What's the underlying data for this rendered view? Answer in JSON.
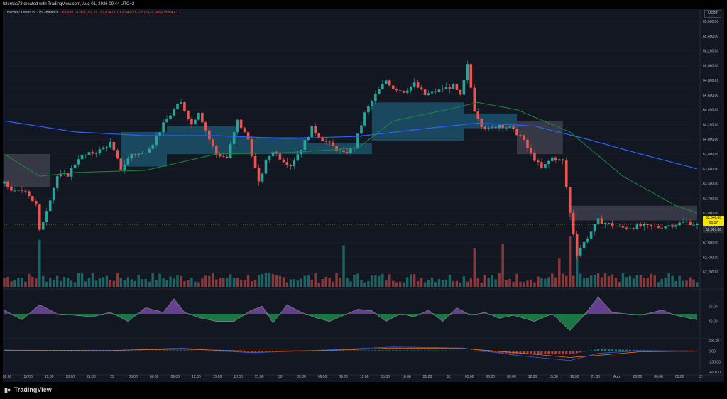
{
  "header": {
    "credit": "telemac73 created with TradingView.com, Aug 01, 2026 09:44 UTC+2"
  },
  "legend": {
    "symbol": "Bitcoin / TetherUS · 15 · Binance",
    "ohlc": "O63,069.74 H63,069.75 L63,034.00 C63,046.00 −23.75 (−0.04%) Vol54.41"
  },
  "currency": "USDT",
  "price_labels": {
    "current": "63,046.00",
    "countdown": "00:57",
    "secondary": "62,887.86"
  },
  "footer": {
    "brand": "TradingView"
  },
  "colors": {
    "background": "#131722",
    "up": "#26a69a",
    "down": "#ef5350",
    "ma_blue": "#2962ff",
    "ma_green": "#1b8a3a",
    "cloud_grey": "#434651",
    "cloud_teal": "#1c5a74",
    "osc_purple": "#9c5bd8",
    "osc_green": "#21c55d"
  },
  "chart_data": {
    "type": "line",
    "price_axis": {
      "ylim": [
        62200,
        65800
      ],
      "tick_labels": [
        "65,600.00",
        "65,400.00",
        "65,200.00",
        "65,000.00",
        "64,800.00",
        "64,600.00",
        "64,400.00",
        "64,200.00",
        "64,000.00",
        "63,800.00",
        "63,600.00",
        "63,400.00",
        "63,200.00",
        "63,000.00",
        "62,800.00",
        "62,600.00",
        "62,400.00",
        "62,200.00"
      ]
    },
    "time_axis": {
      "tick_labels": [
        "09:00",
        "12:00",
        "15:00",
        "18:00",
        "21:00",
        "29",
        "03:00",
        "06:00",
        "09:00",
        "12:00",
        "15:00",
        "18:00",
        "21:00",
        "30",
        "03:00",
        "06:00",
        "09:00",
        "12:00",
        "15:00",
        "18:00",
        "21:00",
        "31",
        "03:00",
        "06:00",
        "09:00",
        "12:00",
        "15:00",
        "18:00",
        "21:00",
        "Aug",
        "03:00",
        "06:00",
        "09:00",
        "12:"
      ]
    },
    "price_series": {
      "name": "",
      "keypoints": [
        [
          0,
          63600
        ],
        [
          3,
          63480
        ],
        [
          6,
          63520
        ],
        [
          9,
          63300
        ],
        [
          10,
          62950
        ],
        [
          12,
          63250
        ],
        [
          15,
          63700
        ],
        [
          18,
          63720
        ],
        [
          21,
          63950
        ],
        [
          24,
          64000
        ],
        [
          27,
          64050
        ],
        [
          30,
          64150
        ],
        [
          33,
          63800
        ],
        [
          36,
          64000
        ],
        [
          39,
          64000
        ],
        [
          42,
          64150
        ],
        [
          45,
          64400
        ],
        [
          48,
          64600
        ],
        [
          50,
          64700
        ],
        [
          53,
          64400
        ],
        [
          55,
          64580
        ],
        [
          58,
          64200
        ],
        [
          60,
          64000
        ],
        [
          63,
          63950
        ],
        [
          66,
          64450
        ],
        [
          69,
          64200
        ],
        [
          72,
          63600
        ],
        [
          74,
          63900
        ],
        [
          76,
          64050
        ],
        [
          78,
          63950
        ],
        [
          81,
          63850
        ],
        [
          84,
          64080
        ],
        [
          87,
          64350
        ],
        [
          90,
          64200
        ],
        [
          93,
          64100
        ],
        [
          96,
          64000
        ],
        [
          99,
          64100
        ],
        [
          102,
          64550
        ],
        [
          105,
          64800
        ],
        [
          108,
          65000
        ],
        [
          110,
          64900
        ],
        [
          113,
          64850
        ],
        [
          116,
          64950
        ],
        [
          119,
          64800
        ],
        [
          122,
          64850
        ],
        [
          125,
          64900
        ],
        [
          127,
          64920
        ],
        [
          129,
          64780
        ],
        [
          131,
          65200
        ],
        [
          133,
          64600
        ],
        [
          135,
          64400
        ],
        [
          137,
          64330
        ],
        [
          140,
          64400
        ],
        [
          143,
          64350
        ],
        [
          146,
          64250
        ],
        [
          149,
          64000
        ],
        [
          152,
          63800
        ],
        [
          155,
          63950
        ],
        [
          158,
          63900
        ],
        [
          160,
          63200
        ],
        [
          162,
          62650
        ],
        [
          164,
          62800
        ],
        [
          166,
          62950
        ],
        [
          168,
          63100
        ],
        [
          171,
          63050
        ],
        [
          175,
          63000
        ],
        [
          180,
          63020
        ],
        [
          185,
          63010
        ],
        [
          190,
          63050
        ],
        [
          193,
          63080
        ],
        [
          196,
          63040
        ]
      ]
    },
    "ma_long": {
      "name": "",
      "keypoints": [
        [
          0,
          64450
        ],
        [
          20,
          64300
        ],
        [
          40,
          64250
        ],
        [
          60,
          64250
        ],
        [
          80,
          64210
        ],
        [
          100,
          64240
        ],
        [
          120,
          64350
        ],
        [
          134,
          64420
        ],
        [
          150,
          64380
        ],
        [
          165,
          64200
        ],
        [
          180,
          64000
        ],
        [
          196,
          63800
        ]
      ]
    },
    "ma_mid": {
      "name": "",
      "keypoints": [
        [
          0,
          64000
        ],
        [
          10,
          63700
        ],
        [
          20,
          63750
        ],
        [
          40,
          63780
        ],
        [
          60,
          64000
        ],
        [
          80,
          64020
        ],
        [
          100,
          64080
        ],
        [
          110,
          64450
        ],
        [
          125,
          64600
        ],
        [
          134,
          64700
        ],
        [
          145,
          64600
        ],
        [
          160,
          64300
        ],
        [
          175,
          63700
        ],
        [
          190,
          63300
        ],
        [
          196,
          63200
        ]
      ]
    },
    "cloud": {
      "name": "",
      "segments": [
        {
          "x0": 0,
          "x1": 13,
          "top": 64000,
          "bottom": 63550,
          "color": "grey"
        },
        {
          "x0": 33,
          "x1": 46,
          "top": 64300,
          "bottom": 63830,
          "color": "teal"
        },
        {
          "x0": 46,
          "x1": 66,
          "top": 64380,
          "bottom": 64000,
          "color": "teal"
        },
        {
          "x0": 66,
          "x1": 86,
          "top": 64230,
          "bottom": 64000,
          "color": "teal"
        },
        {
          "x0": 86,
          "x1": 104,
          "top": 64150,
          "bottom": 64000,
          "color": "teal"
        },
        {
          "x0": 104,
          "x1": 130,
          "top": 64700,
          "bottom": 64180,
          "color": "teal"
        },
        {
          "x0": 130,
          "x1": 145,
          "top": 64550,
          "bottom": 64350,
          "color": "teal"
        },
        {
          "x0": 145,
          "x1": 158,
          "top": 64450,
          "bottom": 64000,
          "color": "grey"
        },
        {
          "x0": 160,
          "x1": 196,
          "top": 63300,
          "bottom": 63100,
          "color": "grey"
        }
      ]
    },
    "oscillator": {
      "ylim": [
        20,
        80
      ],
      "tick_labels": [
        "60.00",
        "40.00"
      ],
      "keypoints": [
        [
          0,
          55
        ],
        [
          5,
          42
        ],
        [
          10,
          62
        ],
        [
          15,
          50
        ],
        [
          20,
          48
        ],
        [
          25,
          46
        ],
        [
          30,
          52
        ],
        [
          35,
          40
        ],
        [
          40,
          58
        ],
        [
          45,
          52
        ],
        [
          48,
          70
        ],
        [
          51,
          52
        ],
        [
          55,
          45
        ],
        [
          60,
          40
        ],
        [
          65,
          40
        ],
        [
          70,
          55
        ],
        [
          73,
          60
        ],
        [
          76,
          38
        ],
        [
          80,
          62
        ],
        [
          84,
          52
        ],
        [
          88,
          45
        ],
        [
          92,
          40
        ],
        [
          96,
          48
        ],
        [
          100,
          56
        ],
        [
          104,
          54
        ],
        [
          108,
          40
        ],
        [
          112,
          50
        ],
        [
          116,
          46
        ],
        [
          120,
          55
        ],
        [
          124,
          40
        ],
        [
          128,
          58
        ],
        [
          132,
          48
        ],
        [
          136,
          52
        ],
        [
          140,
          44
        ],
        [
          144,
          48
        ],
        [
          150,
          40
        ],
        [
          155,
          50
        ],
        [
          160,
          28
        ],
        [
          164,
          48
        ],
        [
          168,
          72
        ],
        [
          172,
          52
        ],
        [
          176,
          50
        ],
        [
          180,
          48
        ],
        [
          186,
          55
        ],
        [
          190,
          48
        ],
        [
          196,
          42
        ]
      ]
    },
    "macd": {
      "ylim": [
        -400,
        200
      ],
      "tick_labels": [
        "200.00",
        "0.00",
        "-200.00",
        "-400.00"
      ],
      "macd_keypoints": [
        [
          0,
          20
        ],
        [
          30,
          10
        ],
        [
          50,
          60
        ],
        [
          70,
          -30
        ],
        [
          90,
          20
        ],
        [
          110,
          80
        ],
        [
          130,
          60
        ],
        [
          145,
          -80
        ],
        [
          160,
          -180
        ],
        [
          168,
          -40
        ],
        [
          180,
          10
        ],
        [
          196,
          5
        ]
      ],
      "signal_keypoints": [
        [
          0,
          10
        ],
        [
          30,
          15
        ],
        [
          50,
          40
        ],
        [
          70,
          0
        ],
        [
          90,
          10
        ],
        [
          110,
          60
        ],
        [
          130,
          50
        ],
        [
          145,
          -30
        ],
        [
          160,
          -120
        ],
        [
          168,
          -80
        ],
        [
          180,
          -10
        ],
        [
          196,
          0
        ]
      ]
    }
  }
}
